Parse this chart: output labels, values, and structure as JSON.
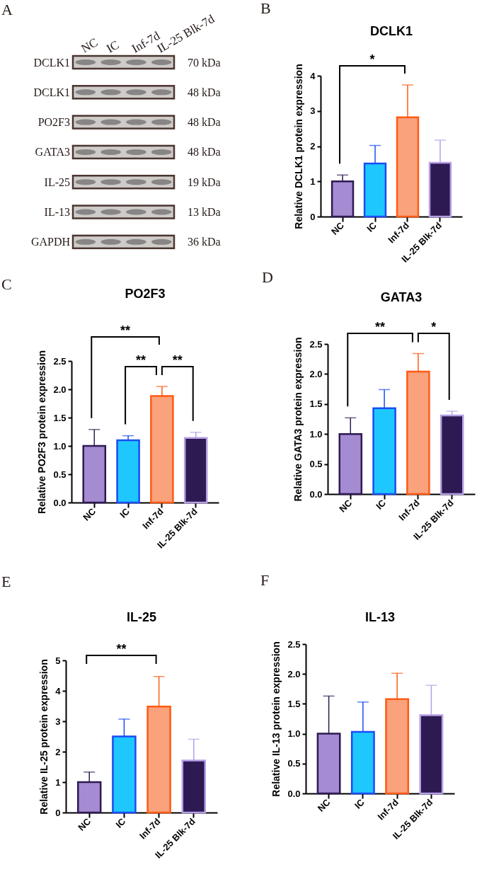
{
  "chart_data": [
    {
      "type": "other",
      "annotations": [
        "A"
      ],
      "categories": [
        "NC",
        "IC",
        "Inf-7d",
        "IL-25 Blk-7d"
      ],
      "y_categories": [
        "DCLK1",
        "DCLK1",
        "PO2F3",
        "GATA3",
        "IL-25",
        "IL-13",
        "GAPDH"
      ],
      "y2_categories": [
        "70 kDa",
        "48 kDa",
        "48 kDa",
        "48 kDa",
        "19 kDa",
        "13 kDa",
        "36 kDa"
      ]
    },
    {
      "type": "bar",
      "title": "DCLK1",
      "ylabel": "Relative DCLK1 protein expression",
      "annotations": [
        "B",
        "*"
      ],
      "categories": [
        "NC",
        "IC",
        "Inf-7d",
        "IL-25 Blk-7d"
      ],
      "values": [
        1.0,
        1.51,
        2.82,
        1.53
      ],
      "errors": [
        [
          1.0,
          1.18
        ],
        [
          1.51,
          2.02
        ],
        [
          2.82,
          3.74
        ],
        [
          1.53,
          2.17
        ]
      ],
      "colors": [
        "#a58bd2",
        "#1ec8ff",
        "#f9a27c",
        "#2e1a52"
      ],
      "ylim": [
        0,
        4
      ],
      "yticks": [
        0,
        1,
        2,
        3,
        4
      ]
    },
    {
      "type": "bar",
      "title": "PO2F3",
      "ylabel": "Relative PO2F3 protein expression",
      "annotations": [
        "C",
        "**",
        "**",
        "**"
      ],
      "categories": [
        "NC",
        "IC",
        "Inf-7d",
        "IL-25 Blk-7d"
      ],
      "values": [
        1.0,
        1.1,
        1.88,
        1.14
      ],
      "errors": [
        [
          1.0,
          1.29
        ],
        [
          1.1,
          1.18
        ],
        [
          1.88,
          2.05
        ],
        [
          1.14,
          1.24
        ]
      ],
      "colors": [
        "#a58bd2",
        "#1ec8ff",
        "#f9a27c",
        "#2e1a52"
      ],
      "ylim": [
        0,
        2.5
      ],
      "yticks": [
        {
          "value": 0,
          "label": "0.0"
        },
        0.5,
        {
          "value": 1,
          "label": "1.0"
        },
        1.5,
        {
          "value": 2,
          "label": "2.0"
        },
        2.5
      ]
    },
    {
      "type": "bar",
      "title": "GATA3",
      "ylabel": "Relative GATA3 protein expression",
      "annotations": [
        "D",
        "**",
        "*"
      ],
      "categories": [
        "NC",
        "IC",
        "Inf-7d",
        "IL-25 Blk-7d"
      ],
      "values": [
        1.0,
        1.43,
        2.04,
        1.31
      ],
      "errors": [
        [
          1.0,
          1.27
        ],
        [
          1.43,
          1.74
        ],
        [
          2.04,
          2.34
        ],
        [
          1.31,
          1.38
        ]
      ],
      "colors": [
        "#a58bd2",
        "#1ec8ff",
        "#f9a27c",
        "#2e1a52"
      ],
      "ylim": [
        0,
        2.5
      ],
      "yticks": [
        {
          "value": 0,
          "label": "0.0"
        },
        0.5,
        {
          "value": 1,
          "label": "1.0"
        },
        1.5,
        {
          "value": 2,
          "label": "2.0"
        },
        2.5
      ]
    },
    {
      "type": "bar",
      "title": "IL-25",
      "ylabel": "Relative IL-25 protein expression",
      "annotations": [
        "E",
        "**"
      ],
      "categories": [
        "NC",
        "IC",
        "Inf-7d",
        "IL-25 Blk-7d"
      ],
      "values": [
        1.0,
        2.5,
        3.48,
        1.71
      ],
      "errors": [
        [
          1.0,
          1.33
        ],
        [
          2.5,
          3.07
        ],
        [
          3.48,
          4.47
        ],
        [
          1.71,
          2.41
        ]
      ],
      "colors": [
        "#a58bd2",
        "#1ec8ff",
        "#f9a27c",
        "#2e1a52"
      ],
      "ylim": [
        0,
        5
      ],
      "yticks": [
        0,
        1,
        2,
        3,
        4,
        5
      ]
    },
    {
      "type": "bar",
      "title": "IL-13",
      "ylabel": "Relative IL-13 protein expression",
      "annotations": [
        "F"
      ],
      "categories": [
        "NC",
        "IC",
        "Inf-7d",
        "IL-25 Blk-7d"
      ],
      "values": [
        1.0,
        1.03,
        1.58,
        1.31
      ],
      "errors": [
        [
          1.0,
          1.63
        ],
        [
          1.03,
          1.53
        ],
        [
          1.58,
          2.01
        ],
        [
          1.31,
          1.81
        ]
      ],
      "colors": [
        "#a58bd2",
        "#1ec8ff",
        "#f9a27c",
        "#2e1a52"
      ],
      "ylim": [
        0,
        2.5
      ],
      "yticks": [
        {
          "value": 0,
          "label": "0.0"
        },
        0.5,
        {
          "value": 1,
          "label": "1.0"
        },
        1.5,
        {
          "value": 2,
          "label": "2.0"
        },
        2.5
      ]
    }
  ]
}
